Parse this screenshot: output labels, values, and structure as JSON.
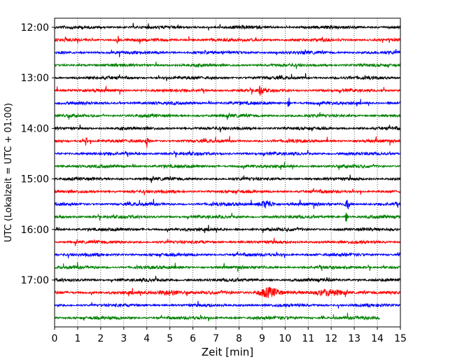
{
  "chart_data": {
    "type": "line",
    "title": "",
    "xlabel": "Zeit  [min]",
    "ylabel": "UTC (Lokalzeit = UTC + 01:00)",
    "xlim": [
      0,
      15
    ],
    "x_ticks": [
      0,
      1,
      2,
      3,
      4,
      5,
      6,
      7,
      8,
      9,
      10,
      11,
      12,
      13,
      14,
      15
    ],
    "x_tick_labels": [
      "0",
      "1",
      "2",
      "3",
      "4",
      "5",
      "6",
      "7",
      "8",
      "9",
      "10",
      "11",
      "12",
      "13",
      "14",
      "15"
    ],
    "y_tick_labels": [
      "12:00",
      "13:00",
      "14:00",
      "15:00",
      "16:00",
      "17:00"
    ],
    "grid": "vertical dotted",
    "color_cycle": [
      "#000000",
      "#ff0000",
      "#0000ff",
      "#008000"
    ],
    "traces": [
      {
        "start": "12:00",
        "end_min": 15
      },
      {
        "start": "12:15",
        "end_min": 15
      },
      {
        "start": "12:30",
        "end_min": 15
      },
      {
        "start": "12:45",
        "end_min": 15
      },
      {
        "start": "13:00",
        "end_min": 15
      },
      {
        "start": "13:15",
        "end_min": 15
      },
      {
        "start": "13:30",
        "end_min": 15
      },
      {
        "start": "13:45",
        "end_min": 15
      },
      {
        "start": "14:00",
        "end_min": 15
      },
      {
        "start": "14:15",
        "end_min": 15
      },
      {
        "start": "14:30",
        "end_min": 15
      },
      {
        "start": "14:45",
        "end_min": 15
      },
      {
        "start": "15:00",
        "end_min": 15
      },
      {
        "start": "15:15",
        "end_min": 15
      },
      {
        "start": "15:30",
        "end_min": 15
      },
      {
        "start": "15:45",
        "end_min": 15
      },
      {
        "start": "16:00",
        "end_min": 15
      },
      {
        "start": "16:15",
        "end_min": 15
      },
      {
        "start": "16:30",
        "end_min": 15
      },
      {
        "start": "16:45",
        "end_min": 15
      },
      {
        "start": "17:00",
        "end_min": 15
      },
      {
        "start": "17:15",
        "end_min": 15
      },
      {
        "start": "17:30",
        "end_min": 15
      },
      {
        "start": "17:45",
        "end_min": 14.1
      }
    ]
  }
}
